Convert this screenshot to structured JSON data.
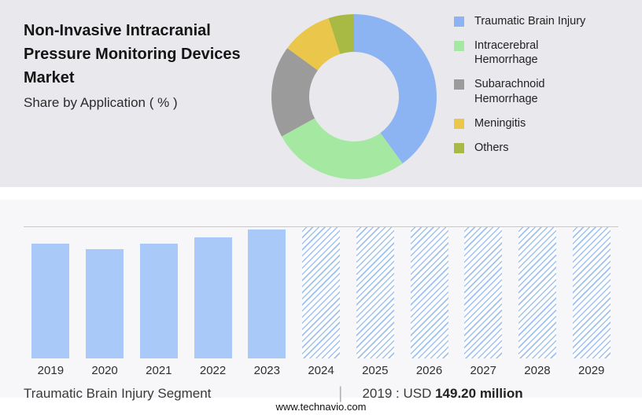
{
  "header": {
    "title": "Non-Invasive Intracranial Pressure Monitoring Devices Market",
    "subtitle": "Share by Application ( % )"
  },
  "chart_data": [
    {
      "type": "pie",
      "donut": true,
      "title": "Share by Application ( % )",
      "legend_position": "right",
      "slices": [
        {
          "label": "Traumatic Brain Injury",
          "value": 40,
          "color": "#8db4f2"
        },
        {
          "label": "Intracerebral Hemorrhage",
          "value": 27,
          "color": "#a5e8a2"
        },
        {
          "label": "Subarachnoid Hemorrhage",
          "value": 18,
          "color": "#9b9b9b"
        },
        {
          "label": "Meningitis",
          "value": 10,
          "color": "#eac74a"
        },
        {
          "label": "Others",
          "value": 5,
          "color": "#a8ba43"
        }
      ]
    },
    {
      "type": "bar",
      "categories": [
        "2019",
        "2020",
        "2021",
        "2022",
        "2023",
        "2024",
        "2025",
        "2026",
        "2027",
        "2028",
        "2029"
      ],
      "values": [
        149.2,
        142,
        150,
        158,
        168,
        172,
        172,
        172,
        172,
        172,
        172
      ],
      "forecast_from_index": 5,
      "ylim": [
        0,
        172
      ],
      "bar_color": "#a9c9f8",
      "hatch_color": "#9fc2f0",
      "grid": "top-line-only",
      "xlabel": "",
      "ylabel": ""
    }
  ],
  "caption": {
    "segment_label": "Traumatic Brain Injury Segment",
    "separator": "|",
    "value_prefix": "2019 : USD",
    "value_bold": "149.20 million"
  },
  "footer": {
    "website": "www.technavio.com"
  }
}
